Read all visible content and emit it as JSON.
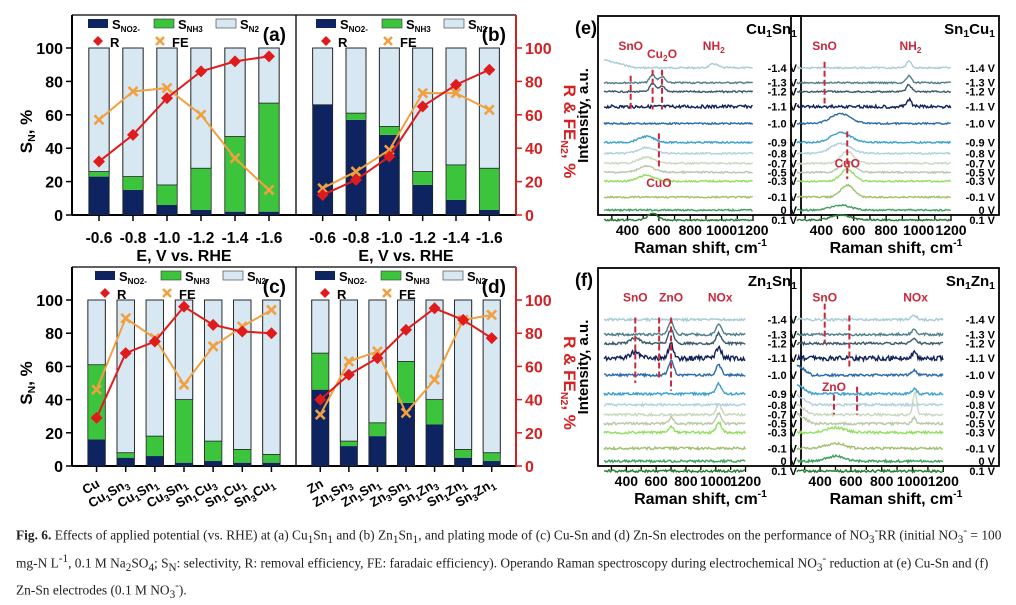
{
  "colors": {
    "no2": "#0d2461",
    "nh3": "#3cc43c",
    "n2": "#d8e8f2",
    "R": "#e01b1b",
    "FE": "#f0a040",
    "right_axis": "#d42020",
    "annotation": "#c8283a"
  },
  "legend": {
    "no2": "S",
    "no2_sub": "NO2-",
    "nh3": "S",
    "nh3_sub": "NH3",
    "n2": "S",
    "n2_sub": "N2",
    "R": "R",
    "FE": "FE"
  },
  "chart_data": [
    {
      "id": "a",
      "type": "bar",
      "panel_label": "(a)",
      "xlabel": "E, V vs. RHE",
      "ylabel": "S",
      "ylabel_sub": "N",
      "ylabel_suffix": ", %",
      "ylim": [
        0,
        100
      ],
      "yticks": [
        0,
        20,
        40,
        60,
        80,
        100
      ],
      "categories": [
        "-0.6",
        "-0.8",
        "-1.0",
        "-1.2",
        "-1.4",
        "-1.6"
      ],
      "stacked": true,
      "series": [
        {
          "name": "S_NO2-",
          "values": [
            23,
            15,
            6,
            3,
            2,
            2
          ]
        },
        {
          "name": "S_NH3",
          "values": [
            3,
            8,
            12,
            25,
            45,
            65
          ]
        },
        {
          "name": "S_N2",
          "values": [
            74,
            77,
            82,
            72,
            53,
            33
          ]
        }
      ],
      "lines": [
        {
          "name": "R",
          "values": [
            32,
            48,
            70,
            86,
            92,
            95
          ]
        },
        {
          "name": "FE",
          "values": [
            57,
            74,
            76,
            60,
            34,
            15
          ]
        }
      ]
    },
    {
      "id": "b",
      "type": "bar",
      "panel_label": "(b)",
      "xlabel": "E, V vs. RHE",
      "ylabel_right": "R & FE",
      "ylabel_right_sub": "N2",
      "ylabel_right_suffix": ", %",
      "ylim": [
        0,
        100
      ],
      "yticks": [
        0,
        20,
        40,
        60,
        80,
        100
      ],
      "categories": [
        "-0.6",
        "-0.8",
        "-1.0",
        "-1.2",
        "-1.4",
        "-1.6"
      ],
      "stacked": true,
      "series": [
        {
          "name": "S_NO2-",
          "values": [
            66,
            57,
            48,
            18,
            9,
            3
          ]
        },
        {
          "name": "S_NH3",
          "values": [
            0,
            4,
            5,
            8,
            21,
            25
          ]
        },
        {
          "name": "S_N2",
          "values": [
            34,
            39,
            47,
            74,
            70,
            72
          ]
        }
      ],
      "lines": [
        {
          "name": "R",
          "values": [
            12,
            21,
            35,
            65,
            78,
            87
          ]
        },
        {
          "name": "FE",
          "values": [
            16,
            26,
            39,
            73,
            73,
            63
          ]
        }
      ]
    },
    {
      "id": "c",
      "type": "bar",
      "panel_label": "(c)",
      "xlabel": "",
      "ylabel": "S",
      "ylabel_sub": "N",
      "ylabel_suffix": ", %",
      "ylim": [
        0,
        100
      ],
      "yticks": [
        0,
        20,
        40,
        60,
        80,
        100
      ],
      "categories": [
        "Cu",
        "Cu1Sn3",
        "Cu1Sn1",
        "Cu3Sn1",
        "Sn1Cu3",
        "Sn1Cu1",
        "Sn3Cu1"
      ],
      "stacked": true,
      "series": [
        {
          "name": "S_NO2-",
          "values": [
            16,
            5,
            6,
            2,
            3,
            2,
            2
          ]
        },
        {
          "name": "S_NH3",
          "values": [
            45,
            3,
            12,
            38,
            12,
            8,
            5
          ]
        },
        {
          "name": "S_N2",
          "values": [
            39,
            92,
            82,
            60,
            85,
            90,
            93
          ]
        }
      ],
      "lines": [
        {
          "name": "R",
          "values": [
            29,
            68,
            75,
            96,
            85,
            81,
            80
          ]
        },
        {
          "name": "FE",
          "values": [
            46,
            89,
            77,
            49,
            72,
            84,
            94
          ]
        }
      ]
    },
    {
      "id": "d",
      "type": "bar",
      "panel_label": "(d)",
      "xlabel": "",
      "ylabel_right": "R & FE",
      "ylabel_right_sub": "N2",
      "ylabel_right_suffix": ", %",
      "ylim": [
        0,
        100
      ],
      "yticks": [
        0,
        20,
        40,
        60,
        80,
        100
      ],
      "categories": [
        "Zn",
        "Zn1Sn3",
        "Zn1Sn1",
        "Zn3Sn1",
        "Sn1Zn3",
        "Sn1Zn1",
        "Sn3Zn1"
      ],
      "stacked": true,
      "series": [
        {
          "name": "S_NO2-",
          "values": [
            46,
            12,
            18,
            38,
            25,
            5,
            3
          ]
        },
        {
          "name": "S_NH3",
          "values": [
            22,
            3,
            8,
            25,
            15,
            5,
            5
          ]
        },
        {
          "name": "S_N2",
          "values": [
            32,
            85,
            74,
            37,
            60,
            90,
            92
          ]
        }
      ],
      "lines": [
        {
          "name": "R",
          "values": [
            40,
            55,
            65,
            82,
            95,
            88,
            77
          ]
        },
        {
          "name": "FE",
          "values": [
            31,
            63,
            69,
            32,
            52,
            88,
            91
          ]
        }
      ]
    },
    {
      "id": "e1",
      "type": "line",
      "panel_label": "(e)",
      "title": "Cu1Sn1",
      "xlabel": "Raman shift, cm-1",
      "ylabel": "Intensity, a.u.",
      "xlim": [
        250,
        1200
      ],
      "xticks": [
        400,
        600,
        800,
        1000,
        1200
      ],
      "potentials": [
        "-1.4 V",
        "-1.3 V",
        "-1.2 V",
        "-1.1 V",
        "-1.0 V",
        "-0.9 V",
        "-0.8 V",
        "-0.7 V",
        "-0.5 V",
        "-0.3 V",
        "-0.1 V",
        "0 V",
        "0.1 V"
      ],
      "annotations": [
        {
          "text": "SnO",
          "x": 420
        },
        {
          "text": "Cu2O",
          "x": 620
        },
        {
          "text": "-NH2",
          "x": 950
        },
        {
          "text": "CuO",
          "x": 600
        }
      ],
      "peak_markers": [
        420,
        560,
        620,
        600
      ]
    },
    {
      "id": "e2",
      "type": "line",
      "title": "Sn1Cu1",
      "xlabel": "Raman shift, cm-1",
      "xlim": [
        250,
        1200
      ],
      "xticks": [
        400,
        600,
        800,
        1000,
        1200
      ],
      "potentials": [
        "-1.4 V",
        "-1.3 V",
        "-1.2 V",
        "-1.1 V",
        "-1.0 V",
        "-0.9 V",
        "-0.8 V",
        "-0.7 V",
        "-0.5 V",
        "-0.3 V",
        "-0.1 V",
        "0 V",
        "0.1 V"
      ],
      "annotations": [
        {
          "text": "SnO",
          "x": 420
        },
        {
          "text": "-NH2",
          "x": 950
        },
        {
          "text": "CuO",
          "x": 560
        }
      ],
      "peak_markers": [
        420,
        560
      ]
    },
    {
      "id": "f1",
      "type": "line",
      "panel_label": "(f)",
      "title": "Zn1Sn1",
      "xlabel": "Raman shift, cm-1",
      "ylabel": "Intensity, a.u.",
      "xlim": [
        250,
        1250
      ],
      "xticks": [
        400,
        600,
        800,
        1000,
        1200
      ],
      "potentials": [
        "-1.4 V",
        "-1.3 V",
        "-1.2 V",
        "-1.1 V",
        "-1.0 V",
        "-0.9 V",
        "-0.8 V",
        "-0.7 V",
        "-0.5 V",
        "-0.3 V",
        "-0.1 V",
        "0 V",
        "0.1 V"
      ],
      "annotations": [
        {
          "text": "SnO",
          "x": 460
        },
        {
          "text": "ZnO",
          "x": 700
        },
        {
          "text": "-NOx",
          "x": 1030
        }
      ],
      "peak_markers": [
        460,
        620,
        700
      ]
    },
    {
      "id": "f2",
      "type": "line",
      "title": "Sn1Zn1",
      "xlabel": "Raman shift, cm-1",
      "xlim": [
        250,
        1250
      ],
      "xticks": [
        400,
        600,
        800,
        1000,
        1200
      ],
      "potentials": [
        "-1.4 V",
        "-1.3 V",
        "-1.2 V",
        "-1.1 V",
        "-1.0 V",
        "-0.9 V",
        "-0.8 V",
        "-0.7 V",
        "-0.5 V",
        "-0.3 V",
        "-0.1 V",
        "0 V",
        "0.1 V"
      ],
      "annotations": [
        {
          "text": "SnO",
          "x": 430
        },
        {
          "text": "-NOx",
          "x": 1020
        },
        {
          "text": "ZnO",
          "x": 490
        }
      ],
      "peak_markers": [
        430,
        590,
        490,
        640
      ]
    }
  ],
  "spectrum_colors": [
    "#a8ccd8",
    "#4f7f8a",
    "#3a5a6a",
    "#10205a",
    "#2a6aa8",
    "#3aa0d0",
    "#b0d0e0",
    "#c8d8c0",
    "#b8c8a8",
    "#90e060",
    "#a0c070",
    "#40a060",
    "#2a7a30"
  ],
  "caption": {
    "label": "Fig. 6.",
    "text_1": " Effects of applied potential (vs. RHE) at (a) Cu",
    "text_2": "Sn",
    "text_3": " and (b) Zn",
    "text_4": "Sn",
    "text_5": ", and plating mode of (c) Cu-Sn and (d) Zn-Sn electrodes on the performance of NO",
    "text_6": "RR (initial NO",
    "text_7": " = 100 mg-N L",
    "text_8": ", 0.1 M Na",
    "text_9": "SO",
    "text_10": "; S",
    "text_11": ": selectivity, R: removal efficiency, FE: faradaic efficiency). Operando Raman spectroscopy during electrochemical NO",
    "text_12": " reduction at (e) Cu-Sn and (f) Zn-Sn electrodes (0.1 M NO",
    "text_13": ")."
  }
}
